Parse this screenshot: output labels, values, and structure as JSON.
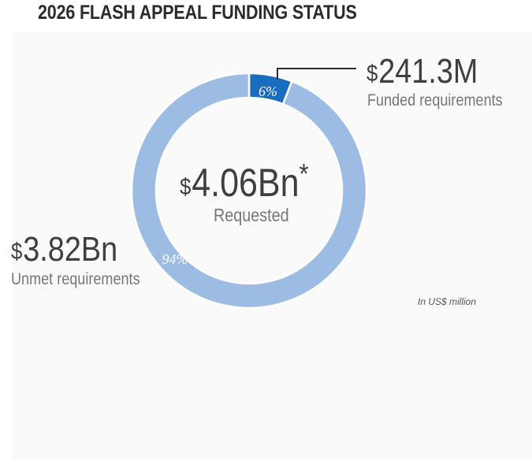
{
  "header": {
    "title": "2026 FLASH APPEAL FUNDING STATUS"
  },
  "chart_data": {
    "type": "pie",
    "variant": "donut",
    "title": "2026 FLASH APPEAL FUNDING STATUS",
    "series": [
      {
        "name": "Funded requirements",
        "value": 241.3,
        "percent_label": "6%",
        "color": "#1a6cbf"
      },
      {
        "name": "Unmet requirements",
        "value": 3820,
        "percent_label": "94%",
        "color": "#9dbce4"
      }
    ],
    "center": {
      "currency": "$",
      "amount": "4.06Bn",
      "asterisk": "*",
      "label": "Requested"
    },
    "funded": {
      "currency": "$",
      "amount": "241.3M",
      "label": "Funded requirements"
    },
    "unmet": {
      "currency": "$",
      "amount": "3.82Bn",
      "label": "Unmet requirements"
    },
    "units_note": "In US$ million"
  }
}
